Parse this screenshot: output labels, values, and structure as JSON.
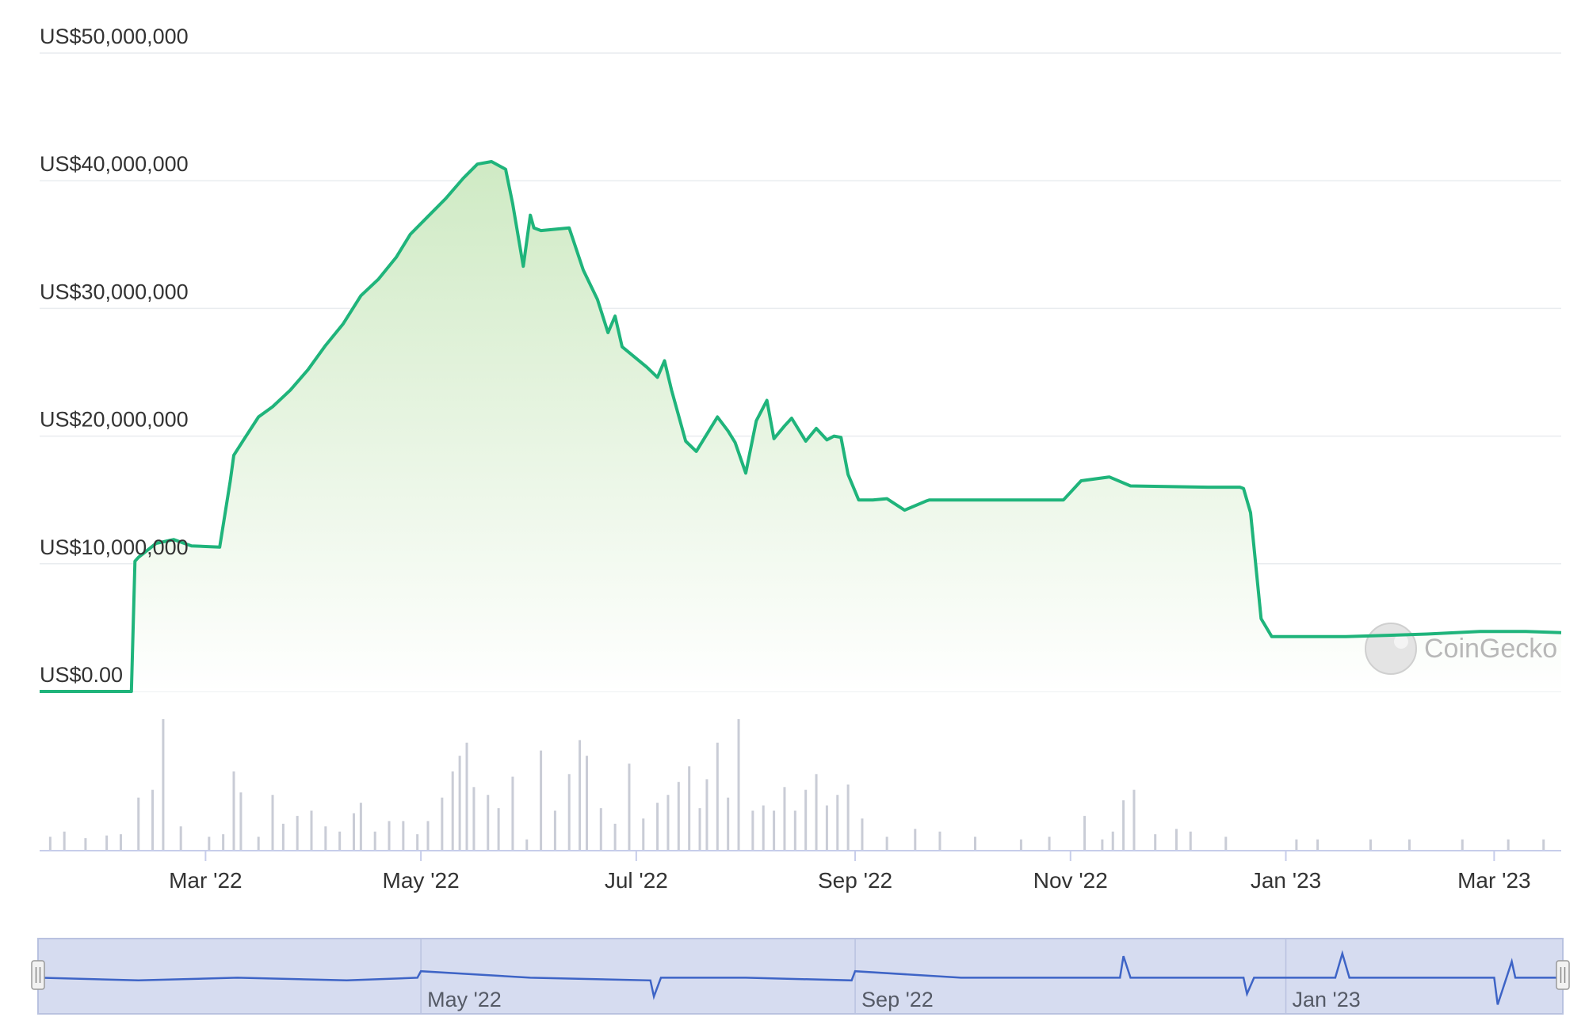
{
  "chart_data": {
    "type": "area",
    "title": "",
    "xlabel": "",
    "ylabel": "",
    "watermark": "CoinGecko",
    "colors": {
      "line": "#1fb47b",
      "fill_top": "#cfeac4",
      "volume": "#c9ccd6",
      "navigator_bg": "#d6dcf0",
      "navigator_line": "#3e64c6",
      "grid": "#e9ecef"
    },
    "ylim": [
      0,
      50000000
    ],
    "y_ticks": [
      {
        "value": 0,
        "label": "US$0.00"
      },
      {
        "value": 10000000,
        "label": "US$10,000,000"
      },
      {
        "value": 20000000,
        "label": "US$20,000,000"
      },
      {
        "value": 30000000,
        "label": "US$30,000,000"
      },
      {
        "value": 40000000,
        "label": "US$40,000,000"
      },
      {
        "value": 50000000,
        "label": "US$50,000,000"
      }
    ],
    "x_range": [
      "2022-01-13",
      "2023-03-20"
    ],
    "x_ticks": [
      {
        "date": "2022-03-01",
        "label": "Mar '22"
      },
      {
        "date": "2022-05-01",
        "label": "May '22"
      },
      {
        "date": "2022-07-01",
        "label": "Jul '22"
      },
      {
        "date": "2022-09-01",
        "label": "Sep '22"
      },
      {
        "date": "2022-11-01",
        "label": "Nov '22"
      },
      {
        "date": "2023-01-01",
        "label": "Jan '23"
      },
      {
        "date": "2023-03-01",
        "label": "Mar '23"
      }
    ],
    "navigator_ticks": [
      {
        "date": "2022-05-01",
        "label": "May '22"
      },
      {
        "date": "2022-09-01",
        "label": "Sep '22"
      },
      {
        "date": "2023-01-01",
        "label": "Jan '23"
      }
    ],
    "series": [
      {
        "x": [
          "2022-01-13",
          "2022-02-08",
          "2022-02-09",
          "2022-02-10",
          "2022-02-15",
          "2022-02-20",
          "2022-02-25",
          "2022-03-05",
          "2022-03-08",
          "2022-03-09",
          "2022-03-12",
          "2022-03-16",
          "2022-03-20",
          "2022-03-25",
          "2022-03-30",
          "2022-04-04",
          "2022-04-09",
          "2022-04-14",
          "2022-04-19",
          "2022-04-24",
          "2022-04-28",
          "2022-05-03",
          "2022-05-08",
          "2022-05-13",
          "2022-05-17",
          "2022-05-21",
          "2022-05-25",
          "2022-05-27",
          "2022-05-30",
          "2022-06-01",
          "2022-06-02",
          "2022-06-04",
          "2022-06-12",
          "2022-06-16",
          "2022-06-20",
          "2022-06-23",
          "2022-06-25",
          "2022-06-27",
          "2022-07-04",
          "2022-07-07",
          "2022-07-09",
          "2022-07-11",
          "2022-07-15",
          "2022-07-18",
          "2022-07-20",
          "2022-07-24",
          "2022-07-27",
          "2022-07-29",
          "2022-08-01",
          "2022-08-04",
          "2022-08-07",
          "2022-08-09",
          "2022-08-12",
          "2022-08-14",
          "2022-08-18",
          "2022-08-21",
          "2022-08-24",
          "2022-08-26",
          "2022-08-28",
          "2022-08-30",
          "2022-09-02",
          "2022-09-06",
          "2022-09-10",
          "2022-09-15",
          "2022-09-21",
          "2022-09-22",
          "2022-09-28",
          "2022-10-15",
          "2022-10-30",
          "2022-11-04",
          "2022-11-12",
          "2022-11-18",
          "2022-12-10",
          "2022-12-19",
          "2022-12-20",
          "2022-12-22",
          "2022-12-25",
          "2022-12-28",
          "2023-01-10",
          "2023-01-18",
          "2023-01-30",
          "2023-02-10",
          "2023-02-25",
          "2023-03-10",
          "2023-03-20"
        ],
        "y": [
          0,
          0,
          10200000,
          10500000,
          11600000,
          11900000,
          11400000,
          11300000,
          16500000,
          18500000,
          19800000,
          21500000,
          22300000,
          23600000,
          25200000,
          27100000,
          28800000,
          31000000,
          32300000,
          34000000,
          35800000,
          37200000,
          38600000,
          40200000,
          41300000,
          41500000,
          40900000,
          38200000,
          33300000,
          37300000,
          36300000,
          36100000,
          36300000,
          33000000,
          30700000,
          28100000,
          29400000,
          27000000,
          25400000,
          24600000,
          25900000,
          23600000,
          19600000,
          18800000,
          19700000,
          21500000,
          20400000,
          19500000,
          17100000,
          21200000,
          22800000,
          19800000,
          20800000,
          21400000,
          19600000,
          20600000,
          19700000,
          20000000,
          19900000,
          17000000,
          15000000,
          15000000,
          15100000,
          14200000,
          14900000,
          15000000,
          15000000,
          15000000,
          15000000,
          16500000,
          16800000,
          16100000,
          16000000,
          16000000,
          15900000,
          14000000,
          5700000,
          4300000,
          4300000,
          4300000,
          4400000,
          4500000,
          4700000,
          4700000,
          4600000
        ]
      }
    ],
    "volume": {
      "x": [
        "2022-01-16",
        "2022-01-20",
        "2022-01-26",
        "2022-02-01",
        "2022-02-05",
        "2022-02-10",
        "2022-02-14",
        "2022-02-17",
        "2022-02-22",
        "2022-03-02",
        "2022-03-06",
        "2022-03-09",
        "2022-03-11",
        "2022-03-16",
        "2022-03-20",
        "2022-03-23",
        "2022-03-27",
        "2022-03-31",
        "2022-04-04",
        "2022-04-08",
        "2022-04-12",
        "2022-04-14",
        "2022-04-18",
        "2022-04-22",
        "2022-04-26",
        "2022-04-30",
        "2022-05-03",
        "2022-05-07",
        "2022-05-10",
        "2022-05-12",
        "2022-05-14",
        "2022-05-16",
        "2022-05-20",
        "2022-05-23",
        "2022-05-27",
        "2022-05-31",
        "2022-06-04",
        "2022-06-08",
        "2022-06-12",
        "2022-06-15",
        "2022-06-17",
        "2022-06-21",
        "2022-06-25",
        "2022-06-29",
        "2022-07-03",
        "2022-07-07",
        "2022-07-10",
        "2022-07-13",
        "2022-07-16",
        "2022-07-19",
        "2022-07-21",
        "2022-07-24",
        "2022-07-27",
        "2022-07-30",
        "2022-08-03",
        "2022-08-06",
        "2022-08-09",
        "2022-08-12",
        "2022-08-15",
        "2022-08-18",
        "2022-08-21",
        "2022-08-24",
        "2022-08-27",
        "2022-08-30",
        "2022-09-03",
        "2022-09-10",
        "2022-09-18",
        "2022-09-25",
        "2022-10-05",
        "2022-10-18",
        "2022-10-26",
        "2022-11-05",
        "2022-11-10",
        "2022-11-13",
        "2022-11-16",
        "2022-11-19",
        "2022-11-25",
        "2022-12-01",
        "2022-12-05",
        "2022-12-15",
        "2023-01-04",
        "2023-01-10",
        "2023-01-25",
        "2023-02-05",
        "2023-02-20",
        "2023-03-05",
        "2023-03-15"
      ],
      "values": [
        10,
        14,
        9,
        11,
        12,
        40,
        46,
        100,
        18,
        10,
        12,
        60,
        44,
        10,
        42,
        20,
        26,
        30,
        18,
        14,
        28,
        36,
        14,
        22,
        22,
        12,
        22,
        40,
        60,
        72,
        82,
        48,
        42,
        32,
        56,
        8,
        76,
        30,
        58,
        84,
        72,
        32,
        20,
        66,
        24,
        36,
        42,
        52,
        64,
        32,
        54,
        82,
        40,
        100,
        30,
        34,
        30,
        48,
        30,
        46,
        58,
        34,
        42,
        50,
        24,
        10,
        16,
        14,
        10,
        8,
        10,
        26,
        8,
        14,
        38,
        46,
        12,
        16,
        14,
        10,
        8,
        8,
        8,
        8,
        8,
        8,
        8
      ]
    },
    "navigator": {
      "x": [
        "2022-01-13",
        "2022-02-10",
        "2022-03-10",
        "2022-04-10",
        "2022-04-30",
        "2022-05-01",
        "2022-06-01",
        "2022-07-05",
        "2022-07-06",
        "2022-07-08",
        "2022-08-01",
        "2022-08-31",
        "2022-09-01",
        "2022-10-01",
        "2022-11-01",
        "2022-11-15",
        "2022-11-16",
        "2022-11-18",
        "2022-12-15",
        "2022-12-20",
        "2022-12-21",
        "2022-12-23",
        "2023-01-01",
        "2023-01-15",
        "2023-01-17",
        "2023-01-19",
        "2023-01-21",
        "2023-02-10",
        "2023-03-01",
        "2023-03-02",
        "2023-03-06",
        "2023-03-07",
        "2023-03-20"
      ],
      "values": [
        0.5,
        0.45,
        0.5,
        0.45,
        0.5,
        0.62,
        0.5,
        0.45,
        0.15,
        0.5,
        0.5,
        0.45,
        0.62,
        0.5,
        0.5,
        0.5,
        0.9,
        0.5,
        0.5,
        0.5,
        0.2,
        0.5,
        0.5,
        0.5,
        0.95,
        0.5,
        0.5,
        0.5,
        0.5,
        0.0,
        0.8,
        0.5,
        0.5
      ]
    }
  }
}
